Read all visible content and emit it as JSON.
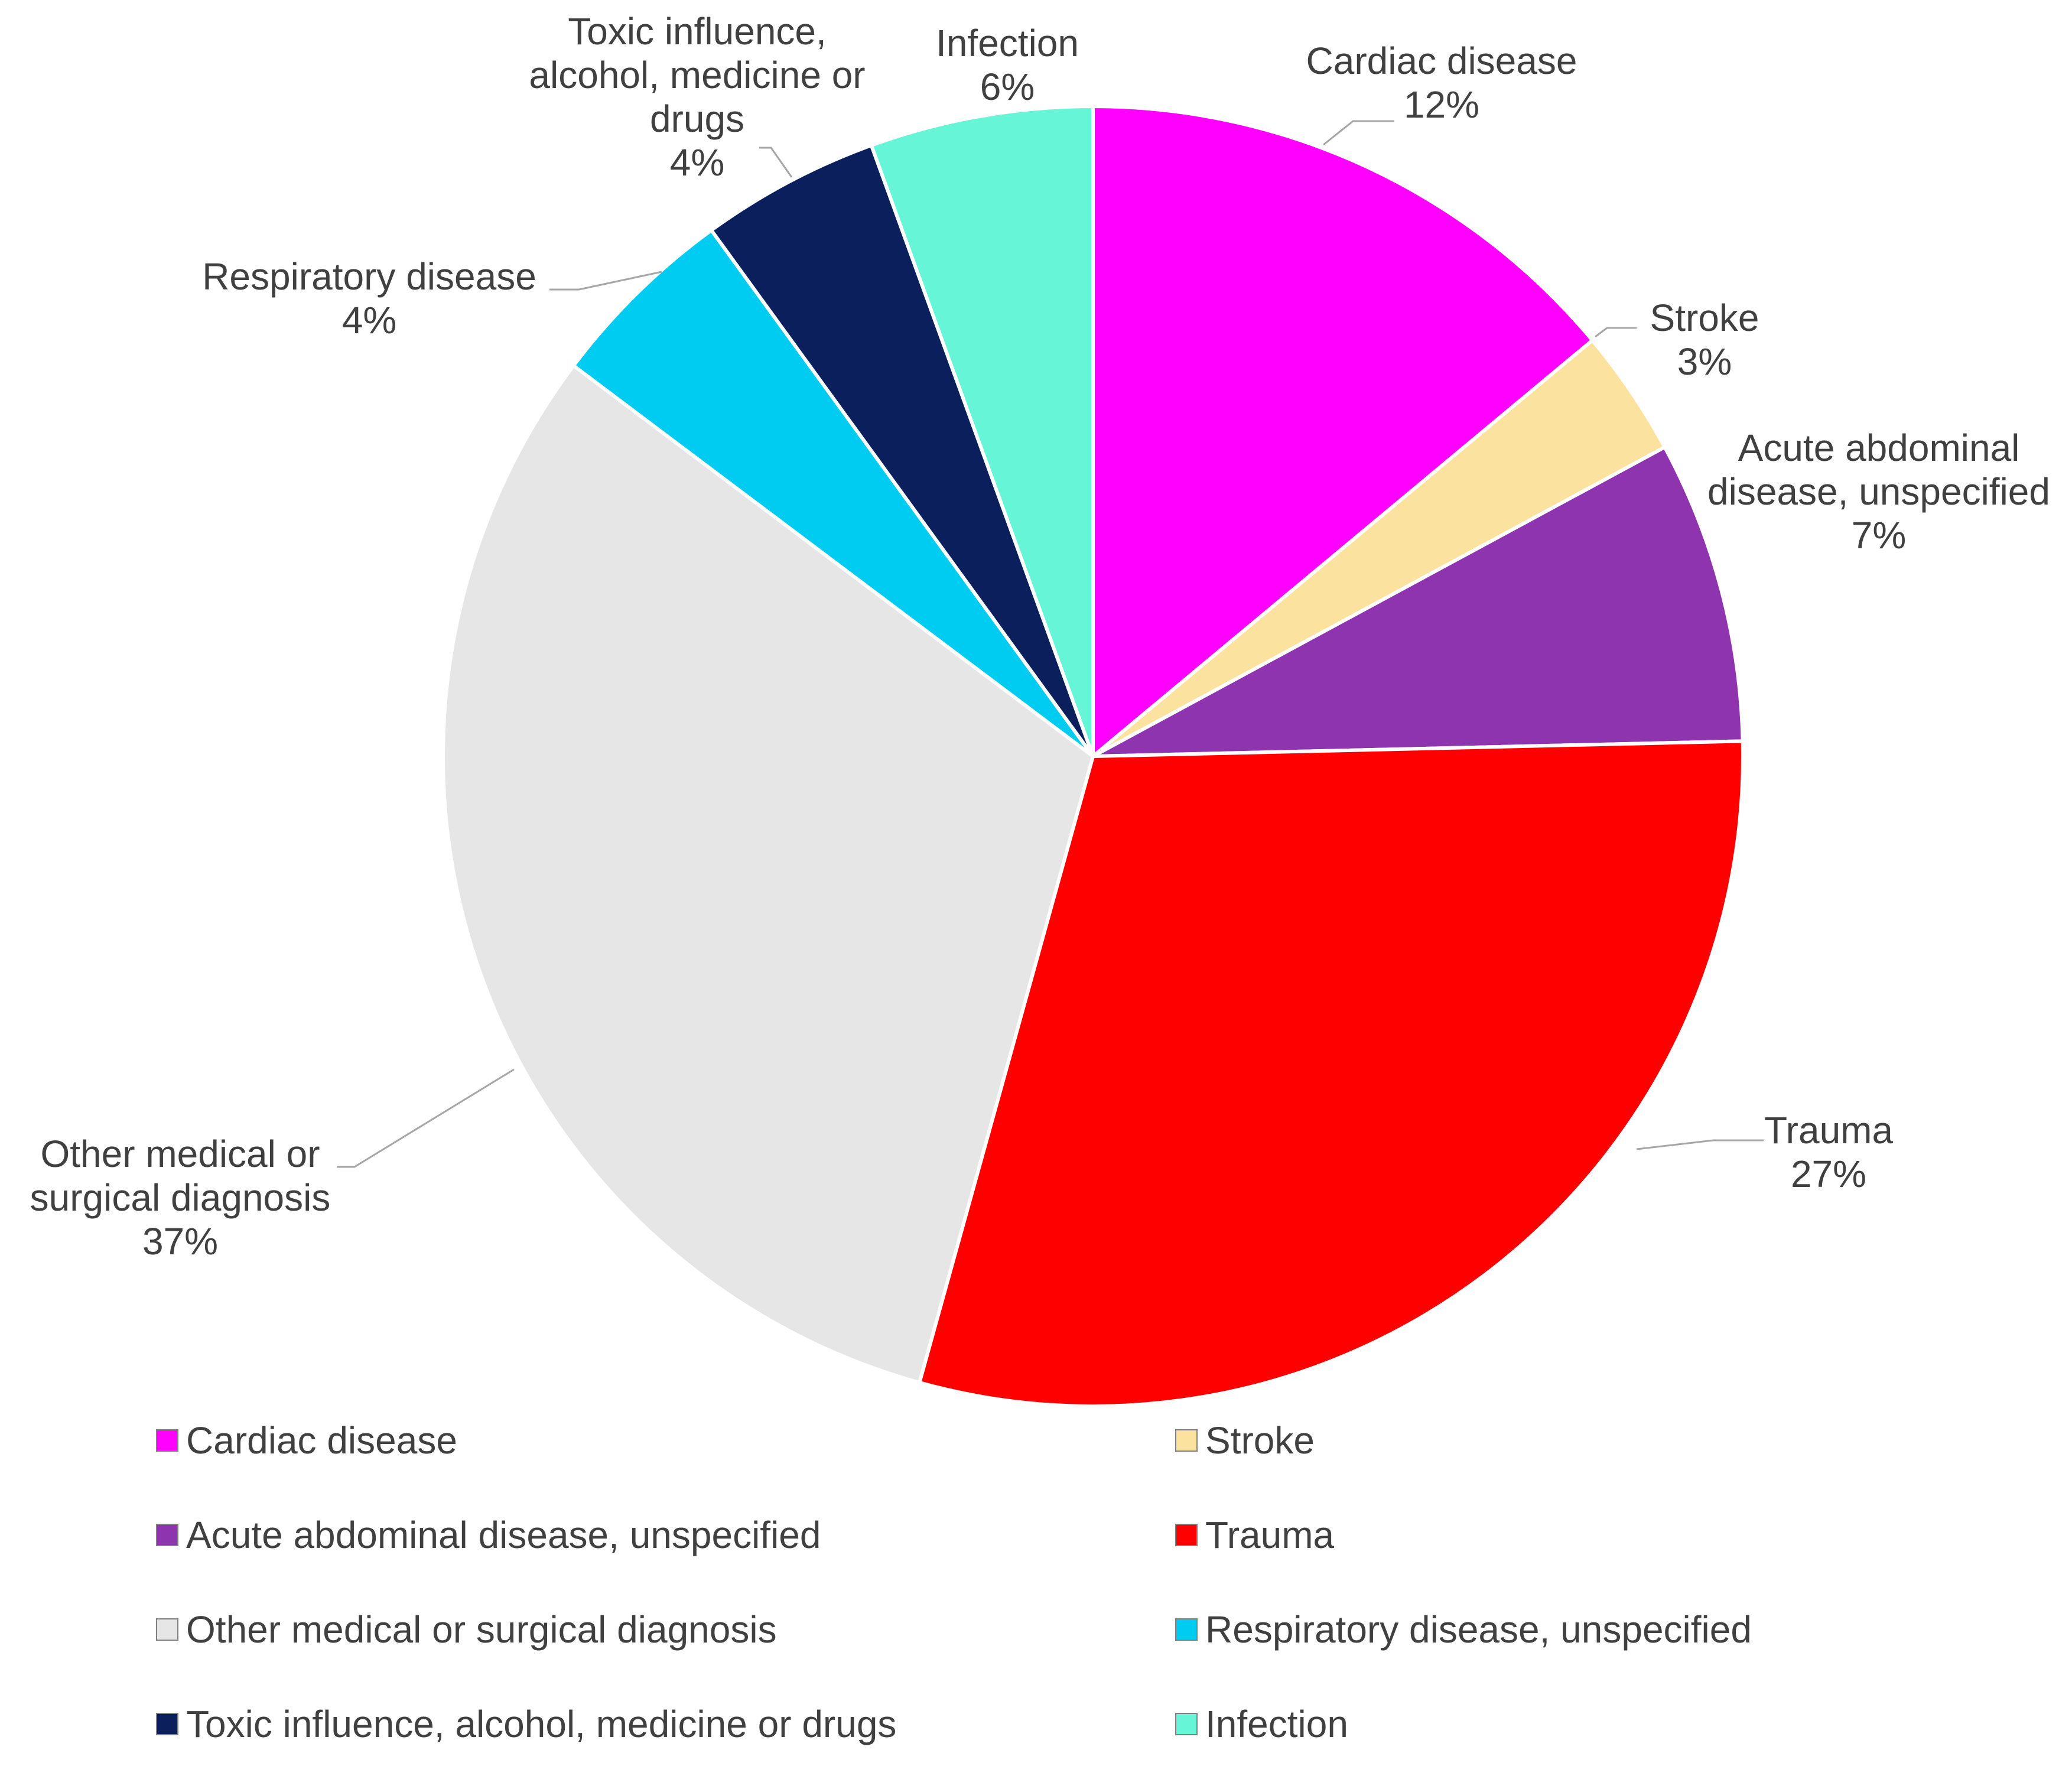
{
  "chart_data": {
    "type": "pie",
    "title": "",
    "slices": [
      {
        "name": "Cardiac disease",
        "value": 12,
        "label_lines": [
          "Cardiac disease"
        ],
        "percent_label": "12%",
        "color": "#ff00ff",
        "angle_value": 14.1
      },
      {
        "name": "Stroke",
        "value": 3,
        "label_lines": [
          "Stroke"
        ],
        "percent_label": "3%",
        "color": "#fbe29f",
        "angle_value": 3.2
      },
      {
        "name": "Acute abdominal disease, unspecified",
        "value": 7,
        "label_lines": [
          "Acute abdominal",
          "disease, unspecified"
        ],
        "percent_label": "7%",
        "color": "#8e34ae",
        "angle_value": 7.6
      },
      {
        "name": "Trauma",
        "value": 27,
        "label_lines": [
          "Trauma"
        ],
        "percent_label": "27%",
        "color": "#ff0000",
        "angle_value": 30.0
      },
      {
        "name": "Other medical or surgical diagnosis",
        "value": 37,
        "label_lines": [
          "Other medical or",
          "surgical diagnosis"
        ],
        "percent_label": "37%",
        "color": "#e6e6e6",
        "angle_value": 31.3
      },
      {
        "name": "Respiratory disease, unspecified",
        "value": 4,
        "label_lines": [
          "Respiratory disease"
        ],
        "percent_label": "4%",
        "color": "#00ccf2",
        "angle_value": 4.8
      },
      {
        "name": "Toxic influence, alcohol, medicine or drugs",
        "value": 4,
        "label_lines": [
          "Toxic influence,",
          "alcohol, medicine or",
          "drugs"
        ],
        "percent_label": "4%",
        "color": "#0a1f5c",
        "angle_value": 4.5
      },
      {
        "name": "Infection",
        "value": 6,
        "label_lines": [
          "Infection"
        ],
        "percent_label": "6%",
        "color": "#66f5d6",
        "angle_value": 5.6
      }
    ],
    "legend": {
      "placement": "bottom",
      "entries": [
        "Cardiac disease",
        "Stroke",
        "Acute abdominal disease, unspecified",
        "Trauma",
        "Other medical or surgical diagnosis",
        "Respiratory disease, unspecified",
        "Toxic influence, alcohol, medicine or drugs",
        "Infection"
      ]
    }
  }
}
